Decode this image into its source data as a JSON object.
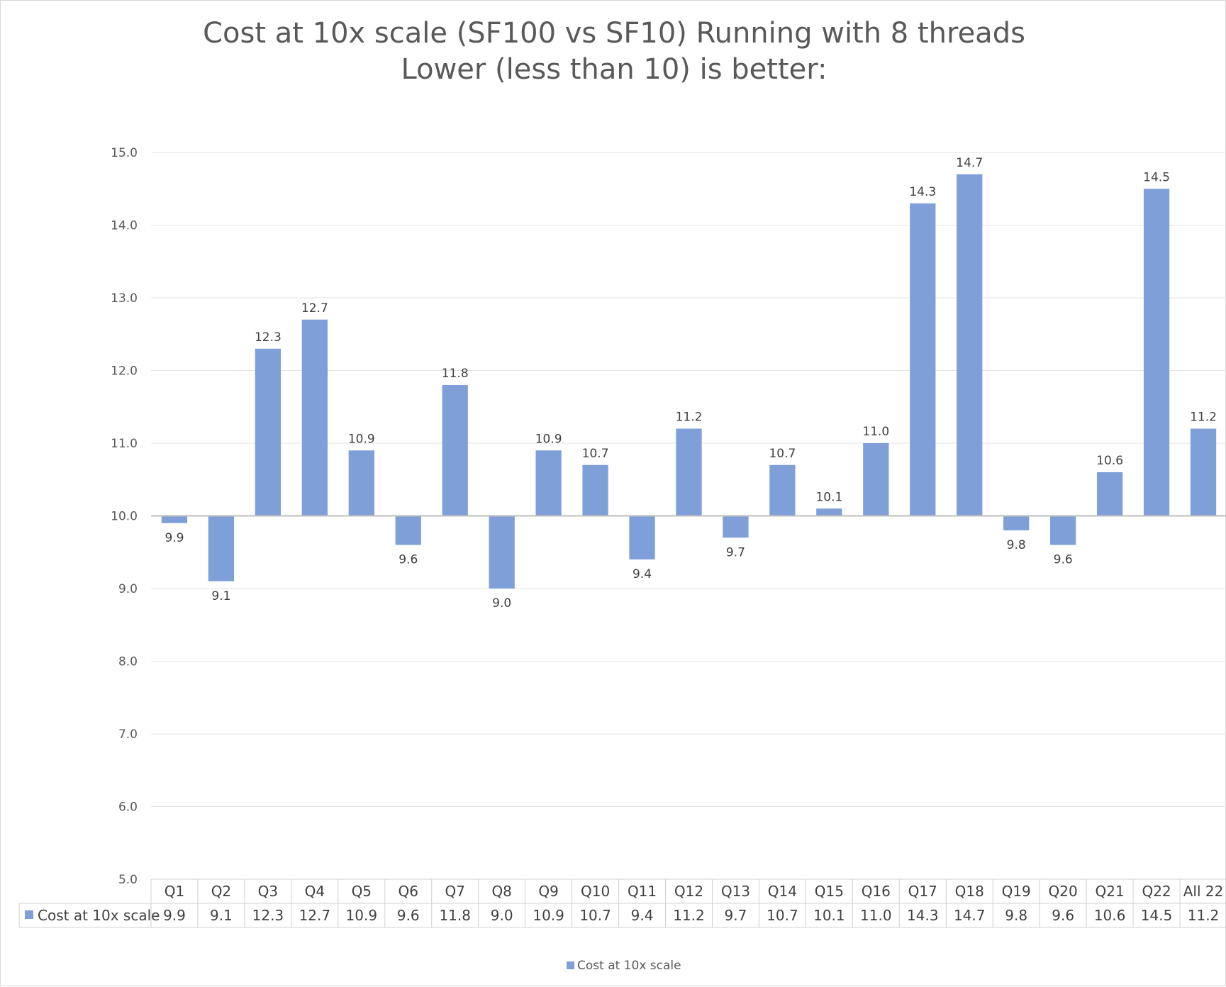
{
  "chart_data": {
    "type": "bar",
    "title": "Cost at 10x scale (SF100 vs SF10) Running with 8 threads",
    "subtitle": "Lower (less than 10) is better:",
    "categories": [
      "Q1",
      "Q2",
      "Q3",
      "Q4",
      "Q5",
      "Q6",
      "Q7",
      "Q8",
      "Q9",
      "Q10",
      "Q11",
      "Q12",
      "Q13",
      "Q14",
      "Q15",
      "Q16",
      "Q17",
      "Q18",
      "Q19",
      "Q20",
      "Q21",
      "Q22",
      "All 22"
    ],
    "series": [
      {
        "name": "Cost at 10x scale",
        "values": [
          9.9,
          9.1,
          12.3,
          12.7,
          10.9,
          9.6,
          11.8,
          9.0,
          10.9,
          10.7,
          9.4,
          11.2,
          9.7,
          10.7,
          10.1,
          11.0,
          14.3,
          14.7,
          9.8,
          9.6,
          10.6,
          14.5,
          11.2
        ],
        "labels": [
          "9.9",
          "9.1",
          "12.3",
          "12.7",
          "10.9",
          "9.6",
          "11.8",
          "9.0",
          "10.9",
          "10.7",
          "9.4",
          "11.2",
          "9.7",
          "10.7",
          "10.1",
          "11.0",
          "14.3",
          "14.7",
          "9.8",
          "9.6",
          "10.6",
          "14.5",
          "11.2"
        ],
        "color": "#7f9fd8"
      }
    ],
    "baseline": 10.0,
    "ylim": [
      5.0,
      15.0
    ],
    "yticks": [
      "5.0",
      "6.0",
      "7.0",
      "8.0",
      "9.0",
      "10.0",
      "11.0",
      "12.0",
      "13.0",
      "14.0",
      "15.0"
    ],
    "grid": true,
    "data_table": true,
    "legend": "bottom",
    "colors": {
      "bar": "#7f9fd8",
      "grid": "#e3e3e3",
      "baseline": "#bfbfbf",
      "text": "#595959",
      "table_border": "#d0d0d0"
    }
  }
}
